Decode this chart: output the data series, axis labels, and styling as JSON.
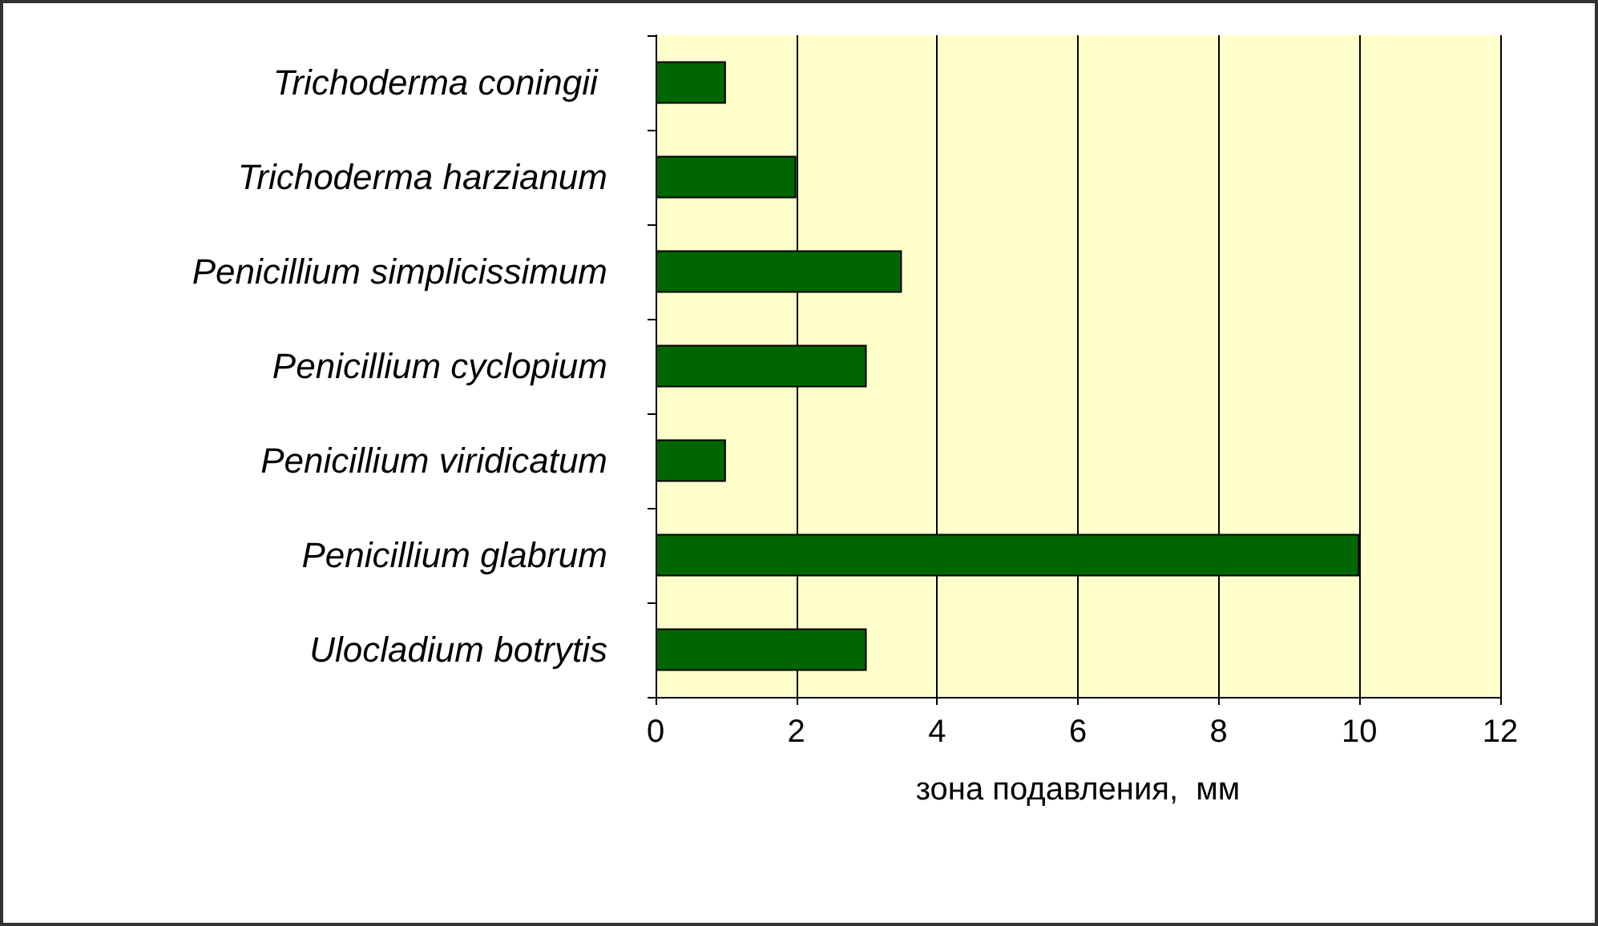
{
  "chart_data": {
    "type": "bar",
    "orientation": "horizontal",
    "xlabel": "зона подавления,  мм",
    "categories": [
      "Trichoderma coningii ",
      "Trichoderma harzianum",
      "Penicillium simplicissimum",
      "Penicillium cyclopium",
      "Penicillium viridicatum",
      "Penicillium glabrum",
      "Ulocladium botrytis"
    ],
    "values": [
      1,
      2,
      3.5,
      3,
      1,
      10,
      3
    ],
    "color": "#006600",
    "xlim": [
      0,
      12
    ],
    "xticks": [
      0,
      2,
      4,
      6,
      8,
      10,
      12
    ],
    "grid": "x"
  }
}
